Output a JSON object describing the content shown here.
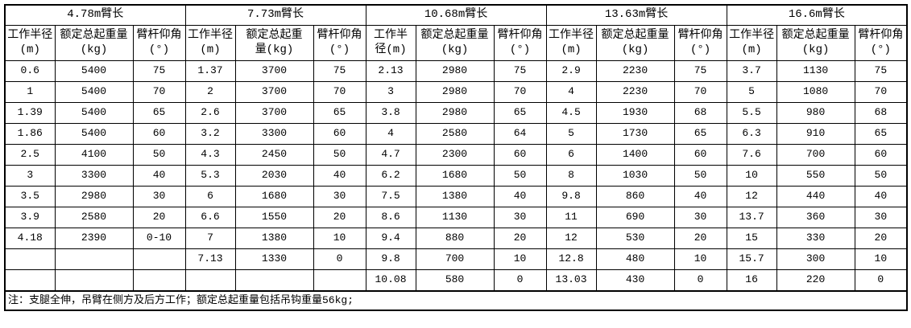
{
  "table": {
    "row_count": 11,
    "note": "注：支腿全伸，吊臂在侧方及后方工作；额定总起重量包括吊钩重量56kg;",
    "groups": [
      {
        "title": "4.78m臂长",
        "col_headers": [
          "工作半径\n(m)",
          "额定总起重量\n(kg)",
          "臂杆仰角\n(°)"
        ],
        "rows": [
          [
            "0.6",
            "5400",
            "75"
          ],
          [
            "1",
            "5400",
            "70"
          ],
          [
            "1.39",
            "5400",
            "65"
          ],
          [
            "1.86",
            "5400",
            "60"
          ],
          [
            "2.5",
            "4100",
            "50"
          ],
          [
            "3",
            "3300",
            "40"
          ],
          [
            "3.5",
            "2980",
            "30"
          ],
          [
            "3.9",
            "2580",
            "20"
          ],
          [
            "4.18",
            "2390",
            "0-10"
          ],
          [
            "",
            "",
            ""
          ],
          [
            "",
            "",
            ""
          ]
        ]
      },
      {
        "title": "7.73m臂长",
        "col_headers": [
          "工作半径\n(m)",
          "额定总起重\n量(kg)",
          "臂杆仰角\n(°)"
        ],
        "rows": [
          [
            "1.37",
            "3700",
            "75"
          ],
          [
            "2",
            "3700",
            "70"
          ],
          [
            "2.6",
            "3700",
            "65"
          ],
          [
            "3.2",
            "3300",
            "60"
          ],
          [
            "4.3",
            "2450",
            "50"
          ],
          [
            "5.3",
            "2030",
            "40"
          ],
          [
            "6",
            "1680",
            "30"
          ],
          [
            "6.6",
            "1550",
            "20"
          ],
          [
            "7",
            "1380",
            "10"
          ],
          [
            "7.13",
            "1330",
            "0"
          ],
          [
            "",
            "",
            ""
          ]
        ]
      },
      {
        "title": "10.68m臂长",
        "col_headers": [
          "工作半\n径(m)",
          "额定总起重量\n(kg)",
          "臂杆仰角\n(°)"
        ],
        "rows": [
          [
            "2.13",
            "2980",
            "75"
          ],
          [
            "3",
            "2980",
            "70"
          ],
          [
            "3.8",
            "2980",
            "65"
          ],
          [
            "4",
            "2580",
            "64"
          ],
          [
            "4.7",
            "2300",
            "60"
          ],
          [
            "6.2",
            "1680",
            "50"
          ],
          [
            "7.5",
            "1380",
            "40"
          ],
          [
            "8.6",
            "1130",
            "30"
          ],
          [
            "9.4",
            "880",
            "20"
          ],
          [
            "9.8",
            "700",
            "10"
          ],
          [
            "10.08",
            "580",
            "0"
          ]
        ]
      },
      {
        "title": "13.63m臂长",
        "col_headers": [
          "工作半径\n(m)",
          "额定总起重量\n(kg)",
          "臂杆仰角\n(°)"
        ],
        "rows": [
          [
            "2.9",
            "2230",
            "75"
          ],
          [
            "4",
            "2230",
            "70"
          ],
          [
            "4.5",
            "1930",
            "68"
          ],
          [
            "5",
            "1730",
            "65"
          ],
          [
            "6",
            "1400",
            "60"
          ],
          [
            "8",
            "1030",
            "50"
          ],
          [
            "9.8",
            "860",
            "40"
          ],
          [
            "11",
            "690",
            "30"
          ],
          [
            "12",
            "530",
            "20"
          ],
          [
            "12.8",
            "480",
            "10"
          ],
          [
            "13.03",
            "430",
            "0"
          ]
        ]
      },
      {
        "title": "16.6m臂长",
        "col_headers": [
          "工作半径\n(m)",
          "额定总起重量\n(kg)",
          "臂杆仰角\n(°)"
        ],
        "rows": [
          [
            "3.7",
            "1130",
            "75"
          ],
          [
            "5",
            "1080",
            "70"
          ],
          [
            "5.5",
            "980",
            "68"
          ],
          [
            "6.3",
            "910",
            "65"
          ],
          [
            "7.6",
            "700",
            "60"
          ],
          [
            "10",
            "550",
            "50"
          ],
          [
            "12",
            "440",
            "40"
          ],
          [
            "13.7",
            "360",
            "30"
          ],
          [
            "15",
            "330",
            "20"
          ],
          [
            "15.7",
            "300",
            "10"
          ],
          [
            "16",
            "220",
            "0"
          ]
        ]
      }
    ]
  }
}
